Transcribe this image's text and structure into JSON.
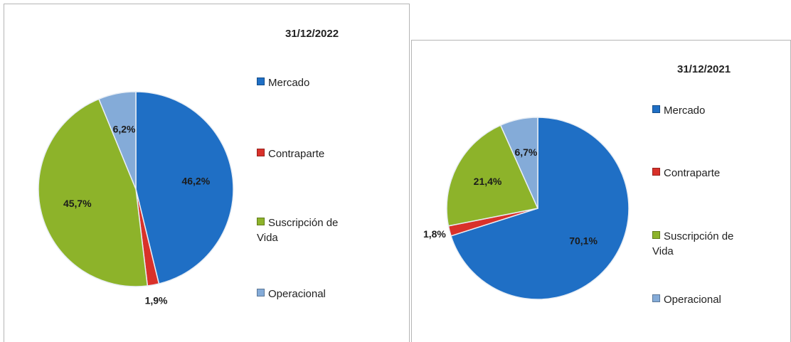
{
  "chart_data": [
    {
      "type": "pie",
      "title": "31/12/2022",
      "categories": [
        "Mercado",
        "Contraparte",
        "Suscripción de Vida",
        "Operacional"
      ],
      "values": [
        46.2,
        1.9,
        45.7,
        6.2
      ],
      "value_labels": [
        "46,2%",
        "1,9%",
        "45,7%",
        "6,2%"
      ],
      "colors": [
        "#1f6fc5",
        "#d9312a",
        "#8db32a",
        "#84abd8"
      ],
      "legend": "right"
    },
    {
      "type": "pie",
      "title": "31/12/2021",
      "categories": [
        "Mercado",
        "Contraparte",
        "Suscripción de Vida",
        "Operacional"
      ],
      "values": [
        70.1,
        1.8,
        21.4,
        6.7
      ],
      "value_labels": [
        "70,1%",
        "1,8%",
        "21,4%",
        "6,7%"
      ],
      "colors": [
        "#1f6fc5",
        "#d9312a",
        "#8db32a",
        "#84abd8"
      ],
      "legend": "right"
    }
  ]
}
